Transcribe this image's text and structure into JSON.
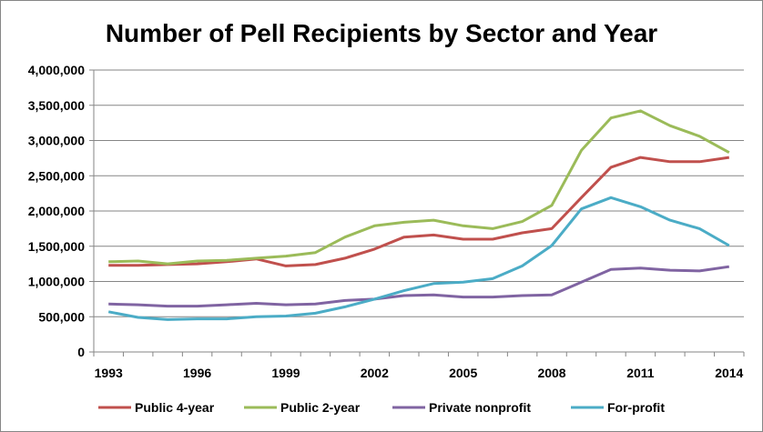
{
  "chart_data": {
    "type": "line",
    "title": "Number of Pell Recipients by Sector and Year",
    "xlabel": "",
    "ylabel": "",
    "x": [
      1993,
      1994,
      1995,
      1996,
      1997,
      1998,
      1999,
      2000,
      2001,
      2002,
      2003,
      2004,
      2005,
      2006,
      2007,
      2008,
      2009,
      2010,
      2011,
      2012,
      2013,
      2014
    ],
    "x_tick_labels": [
      "1993",
      "1996",
      "1999",
      "2002",
      "2005",
      "2008",
      "2011",
      "2014"
    ],
    "y_tick_labels": [
      "0",
      "500,000",
      "1,000,000",
      "1,500,000",
      "2,000,000",
      "2,500,000",
      "3,000,000",
      "3,500,000",
      "4,000,000"
    ],
    "ylim": [
      0,
      4000000
    ],
    "grid": "horizontal",
    "legend_position": "bottom",
    "series": [
      {
        "name": "Public 4-year",
        "color": "#C0504D",
        "values": [
          1230000,
          1230000,
          1240000,
          1250000,
          1280000,
          1320000,
          1220000,
          1240000,
          1330000,
          1460000,
          1630000,
          1660000,
          1600000,
          1600000,
          1690000,
          1750000,
          2190000,
          2620000,
          2760000,
          2700000,
          2700000,
          2760000
        ]
      },
      {
        "name": "Public 2-year",
        "color": "#9BBB59",
        "values": [
          1280000,
          1290000,
          1250000,
          1290000,
          1300000,
          1330000,
          1360000,
          1410000,
          1630000,
          1790000,
          1840000,
          1870000,
          1790000,
          1750000,
          1850000,
          2080000,
          2860000,
          3320000,
          3420000,
          3210000,
          3060000,
          2830000
        ]
      },
      {
        "name": "Private nonprofit",
        "color": "#8064A2",
        "values": [
          680000,
          670000,
          650000,
          650000,
          670000,
          690000,
          670000,
          680000,
          730000,
          750000,
          800000,
          810000,
          780000,
          780000,
          800000,
          810000,
          990000,
          1170000,
          1190000,
          1160000,
          1150000,
          1210000
        ]
      },
      {
        "name": "For-profit",
        "color": "#4BACC6",
        "values": [
          570000,
          490000,
          460000,
          470000,
          470000,
          500000,
          510000,
          550000,
          640000,
          750000,
          870000,
          970000,
          990000,
          1040000,
          1220000,
          1510000,
          2030000,
          2190000,
          2060000,
          1870000,
          1750000,
          1510000
        ]
      }
    ]
  }
}
